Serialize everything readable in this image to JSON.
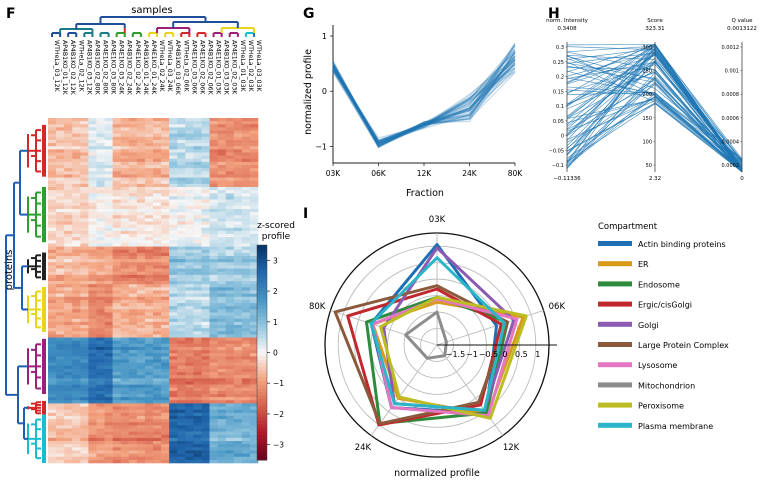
{
  "panel_labels": {
    "F": "F",
    "G": "G",
    "H": "H",
    "I": "I"
  },
  "chart_data": [
    {
      "panel": "F",
      "type": "heatmap",
      "title": "samples",
      "ylabel": "proteins",
      "colorbar": {
        "label_line1": "z-scored",
        "label_line2": "profile",
        "ticks": [
          "3",
          "2",
          "1",
          "0",
          "−1",
          "−2",
          "−3"
        ],
        "range": [
          -3.5,
          3.5
        ]
      },
      "sample_labels": [
        "WTHeLa_03_12K",
        "AP4B1KO_01_12K",
        "AP4B1KO_02_12K",
        "WTHeLa_02_12K",
        "AP4B1KO_03_12K",
        "AP4B1KO_02_80K",
        "AP4E1KO_02_80K",
        "AP4E1KO_03_80K",
        "AP4E1KO_03_24K",
        "AP4B1KO_02_24K",
        "AP4E1KO_02_24K",
        "AP4B1KO_01_24K",
        "AP4E1KO_01_24K",
        "WTHeLa_02_24K",
        "WTHeLa_03_24K",
        "AP4B1KO_03_06K",
        "WTHeLa_02_06K",
        "AP4E1KO_03_06K",
        "AP4E1KO_02_06K",
        "AP4B1KO_02_06K",
        "AP4E1KO_01_03K",
        "AP4B1KO_03_03K",
        "AP4E1KO_02_03K",
        "WTHeLa_01_03K",
        "WTHeLa_02_03K",
        "WTHeLa_03_03K"
      ],
      "cluster_colors": [
        "#d62728",
        "#2ca02c",
        "#222222",
        "#e8d51a",
        "#9c1f7a",
        "#1f77b4",
        "#d62728",
        "#17becf"
      ]
    },
    {
      "panel": "G",
      "type": "line",
      "x": [
        "03K",
        "06K",
        "12K",
        "24K",
        "80K"
      ],
      "xlabel": "Fraction",
      "ylabel": "normalized profile",
      "yticks": [
        "1",
        "0",
        "−1"
      ],
      "ylim": [
        -1.3,
        1.2
      ],
      "mean_profile": [
        0.45,
        -0.95,
        -0.6,
        -0.3,
        0.6
      ],
      "spread": [
        0.15,
        0.12,
        0.08,
        0.35,
        0.45
      ],
      "n_lines": 45,
      "color": "#1f77b4"
    },
    {
      "panel": "H",
      "type": "parallel",
      "axes": [
        {
          "name_line1": "norm. Intensity",
          "name_line2": "0.3408",
          "min": "−0.11336",
          "ticks": [
            "0.3",
            "0.25",
            "0.2",
            "0.15",
            "0.1",
            "0.05",
            "0",
            "−0.05",
            "−0.1"
          ]
        },
        {
          "name_line1": "Score",
          "name_line2": "323.31",
          "min": "2.32",
          "ticks": [
            "300",
            "250",
            "200",
            "150",
            "100",
            "50"
          ]
        },
        {
          "name_line1": "Q value",
          "name_line2": "0.0013122",
          "min": "0",
          "ticks": [
            "0.0012",
            "0.001",
            "0.0008",
            "0.0006",
            "0.0004",
            "0.0002"
          ]
        }
      ],
      "n_lines": 70,
      "color": "#1f77b4"
    },
    {
      "panel": "I",
      "type": "radar",
      "title": "normalized profile",
      "axes": [
        "03K",
        "06K",
        "12K",
        "24K",
        "80K"
      ],
      "rlim": [
        -2,
        1.4
      ],
      "rticks": [
        "−1.5",
        "−1",
        "−0.5",
        "0",
        "0.5",
        "1"
      ],
      "legend_title": "Compartment",
      "series": [
        {
          "name": "Actin binding proteins",
          "color": "#1f6fb4",
          "values": [
            1.05,
            -0.1,
            0.55,
            0.35,
            0.1
          ]
        },
        {
          "name": "ER",
          "color": "#d99a1a",
          "values": [
            -0.7,
            0.75,
            0.6,
            0.0,
            0.05
          ]
        },
        {
          "name": "Endosome",
          "color": "#2e8b3c",
          "values": [
            -0.55,
            0.25,
            0.55,
            0.95,
            0.25
          ]
        },
        {
          "name": "Ergic/cisGolgi",
          "color": "#c0282d",
          "values": [
            -0.3,
            0.05,
            0.25,
            1.0,
            0.85
          ]
        },
        {
          "name": "Golgi",
          "color": "#8a5bb0",
          "values": [
            0.95,
            0.45,
            0.45,
            0.2,
            -0.3
          ]
        },
        {
          "name": "Large Protein Complex",
          "color": "#8b5a3c",
          "values": [
            -0.2,
            0.25,
            0.15,
            0.95,
            1.25
          ]
        },
        {
          "name": "Lysosome",
          "color": "#e377c2",
          "values": [
            -0.6,
            0.55,
            0.65,
            0.35,
            0.05
          ]
        },
        {
          "name": "Mitochondrion",
          "color": "#8c8c8c",
          "values": [
            -1.0,
            -1.7,
            -1.6,
            -1.5,
            -1.0
          ]
        },
        {
          "name": "Peroxisome",
          "color": "#bcbd22",
          "values": [
            -0.55,
            0.85,
            0.75,
            -0.05,
            -0.2
          ]
        },
        {
          "name": "Plasma membrane",
          "color": "#2bb5c8",
          "values": [
            0.65,
            0.15,
            0.45,
            0.2,
            0.1
          ]
        }
      ]
    }
  ]
}
